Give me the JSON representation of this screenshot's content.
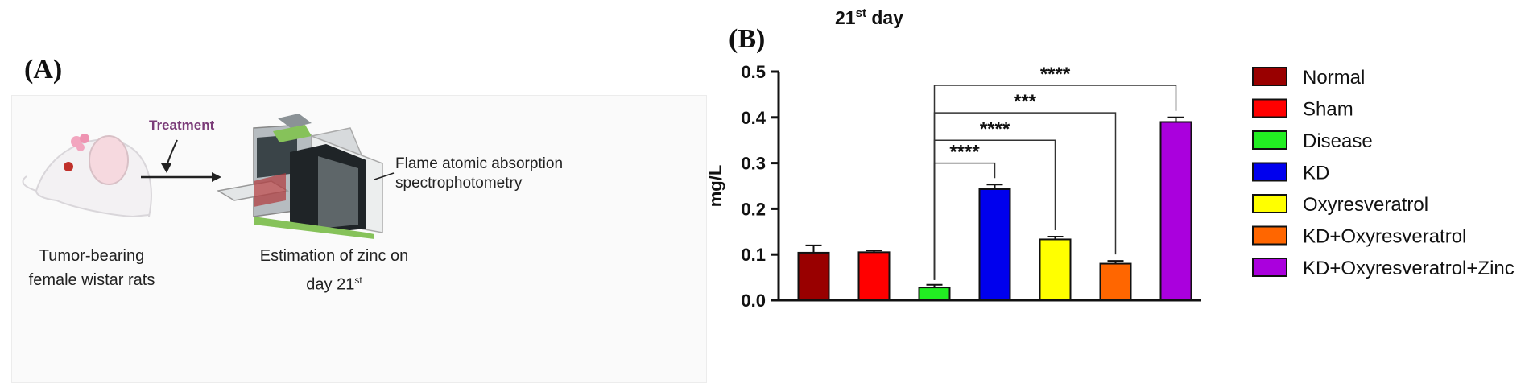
{
  "panel_a": {
    "letter": "(A)",
    "treatment_label": "Treatment",
    "instrument_label_line1": "Flame atomic absorption",
    "instrument_label_line2": "spectrophotometry",
    "caption_left_line1": "Tumor-bearing",
    "caption_left_line2": "female wistar rats",
    "caption_mid_line1": "Estimation of zinc on",
    "caption_mid_line2": "day 21",
    "caption_mid_sup": "st"
  },
  "panel_b": {
    "letter": "(B)"
  },
  "colors": {
    "Normal": "#990000",
    "Sham": "#ff0000",
    "Disease": "#22ee22",
    "KD": "#0000ee",
    "Oxyresveratrol": "#ffff00",
    "KD+Oxyresveratrol": "#ff6600",
    "KD+Oxyresveratrol+Zinc": "#aa00dd"
  },
  "chart_data": {
    "type": "bar",
    "title": "21",
    "title_sup": "st",
    "title_suffix": " day",
    "ylabel": "mg/L",
    "xlabel": "",
    "ylim": [
      0,
      0.5
    ],
    "yticks": [
      "0.0",
      "0.1",
      "0.2",
      "0.3",
      "0.4",
      "0.5"
    ],
    "categories": [
      "Normal",
      "Sham",
      "Disease",
      "KD",
      "Oxyresveratrol",
      "KD+Oxyresveratrol",
      "KD+Oxyresveratrol+Zinc"
    ],
    "values": [
      0.104,
      0.105,
      0.028,
      0.243,
      0.133,
      0.08,
      0.39
    ],
    "errors": [
      0.016,
      0.004,
      0.006,
      0.01,
      0.006,
      0.006,
      0.01
    ],
    "significance": [
      {
        "from": "Disease",
        "to": "KD",
        "label": "****"
      },
      {
        "from": "Disease",
        "to": "Oxyresveratrol",
        "label": "****"
      },
      {
        "from": "Disease",
        "to": "KD+Oxyresveratrol",
        "label": "***"
      },
      {
        "from": "Disease",
        "to": "KD+Oxyresveratrol+Zinc",
        "label": "****"
      }
    ],
    "legend_position": "right"
  }
}
